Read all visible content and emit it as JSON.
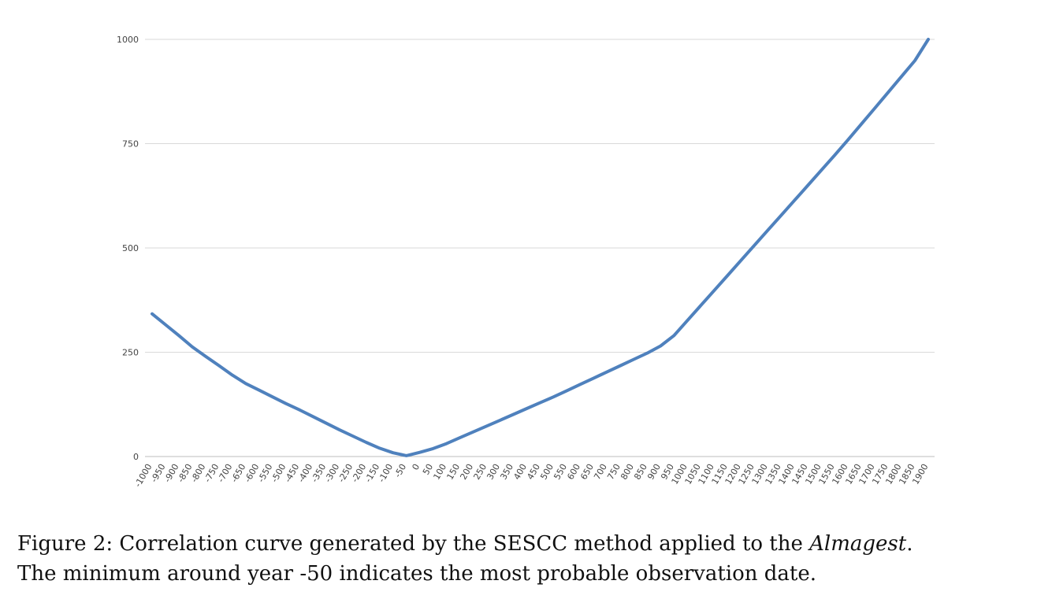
{
  "chart_data": {
    "type": "line",
    "ylim": [
      0,
      1000
    ],
    "yticks": [
      0,
      250,
      500,
      750,
      1000
    ],
    "grid": true,
    "color": "#4f81bd",
    "x": [
      -1000,
      -950,
      -900,
      -850,
      -800,
      -750,
      -700,
      -650,
      -600,
      -550,
      -500,
      -450,
      -400,
      -350,
      -300,
      -250,
      -200,
      -150,
      -100,
      -50,
      0,
      50,
      100,
      150,
      200,
      250,
      300,
      350,
      400,
      450,
      500,
      550,
      600,
      650,
      700,
      750,
      800,
      850,
      900,
      950,
      1000,
      1050,
      1100,
      1150,
      1200,
      1250,
      1300,
      1350,
      1400,
      1450,
      1500,
      1550,
      1600,
      1650,
      1700,
      1750,
      1800,
      1850,
      1900
    ],
    "series": [
      {
        "values": [
          342,
          316,
          290,
          263,
          240,
          218,
          195,
          175,
          159,
          143,
          127,
          112,
          96,
          80,
          64,
          49,
          34,
          20,
          9,
          2,
          10,
          19,
          31,
          45,
          59,
          73,
          87,
          101,
          115,
          129,
          143,
          158,
          173,
          188,
          203,
          218,
          233,
          248,
          265,
          290,
          326,
          362,
          398,
          434,
          470,
          506,
          542,
          578,
          614,
          650,
          686,
          722,
          759,
          797,
          835,
          873,
          911,
          949,
          1000
        ]
      }
    ]
  },
  "caption": {
    "line1_prefix": "Figure 2: Correlation curve generated by the SESCC method applied to the ",
    "line1_italic": "Almagest",
    "line1_suffix": ".",
    "line2": "The minimum around year -50 indicates the most probable observation date."
  }
}
